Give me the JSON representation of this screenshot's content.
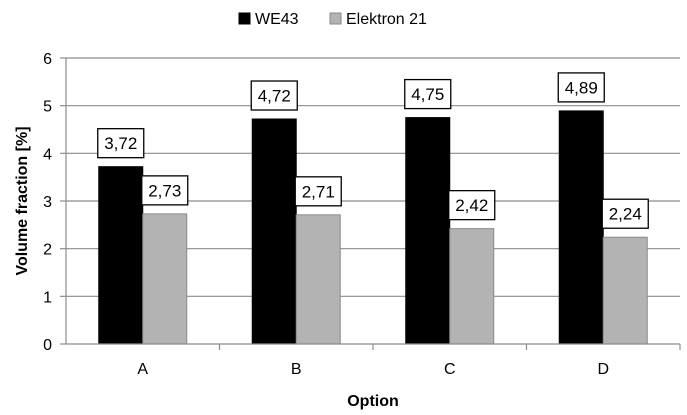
{
  "chart_data": {
    "type": "bar",
    "categories": [
      "A",
      "B",
      "C",
      "D"
    ],
    "series": [
      {
        "name": "WE43",
        "values": [
          3.72,
          4.72,
          4.75,
          4.89
        ],
        "labels": [
          "3,72",
          "4,72",
          "4,75",
          "4,89"
        ],
        "color": "#000000"
      },
      {
        "name": "Elektron 21",
        "values": [
          2.73,
          2.71,
          2.42,
          2.24
        ],
        "labels": [
          "2,73",
          "2,71",
          "2,42",
          "2,24"
        ],
        "color": "#b3b3b3"
      }
    ],
    "xlabel": "Option",
    "ylabel": "Volume fraction [%]",
    "ylim": [
      0,
      6
    ],
    "yticks": [
      "0",
      "1",
      "2",
      "3",
      "4",
      "5",
      "6"
    ],
    "grid": true,
    "legend_position": "top-center"
  }
}
